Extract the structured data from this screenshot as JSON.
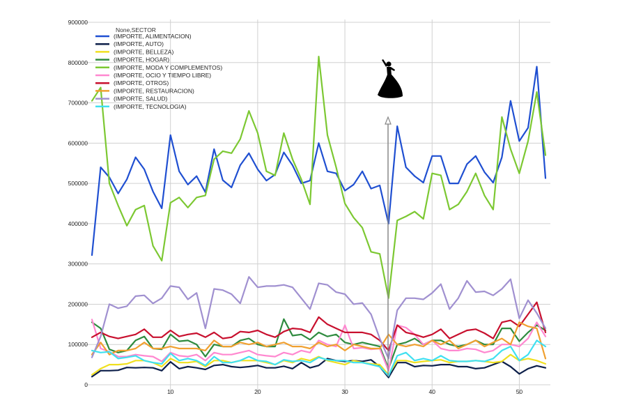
{
  "chart_data": {
    "type": "line",
    "x": [
      1,
      2,
      3,
      4,
      5,
      6,
      7,
      8,
      9,
      10,
      11,
      12,
      13,
      14,
      15,
      16,
      17,
      18,
      19,
      20,
      21,
      22,
      23,
      24,
      25,
      26,
      27,
      28,
      29,
      30,
      31,
      32,
      33,
      34,
      35,
      36,
      37,
      38,
      39,
      40,
      41,
      42,
      43,
      44,
      45,
      46,
      47,
      48,
      49,
      50,
      51,
      52,
      53
    ],
    "xticks": [
      10,
      20,
      30,
      40,
      50
    ],
    "xlim": [
      1,
      53
    ],
    "ylim": [
      0,
      900000
    ],
    "yticks": [
      0,
      100000,
      200000,
      300000,
      400000,
      500000,
      600000,
      700000,
      800000,
      900000
    ],
    "ytick_labels": [
      "0",
      "100000",
      "200000",
      "300000",
      "400000",
      "500000",
      "600000",
      "700000",
      "800000",
      "900000"
    ],
    "grid": true,
    "legend_title": "None,SECTOR",
    "legend_position": "top-left",
    "annotation": "dancer-icon with arrow at x=35",
    "series": [
      {
        "name": "(IMPORTE, ALIMENTACION)",
        "color": "#1f4fd1",
        "values": [
          322000,
          540000,
          515000,
          475000,
          510000,
          565000,
          535000,
          480000,
          438000,
          620000,
          530000,
          497000,
          518000,
          478000,
          585000,
          508000,
          490000,
          545000,
          575000,
          535000,
          507000,
          522000,
          577000,
          545000,
          500000,
          507000,
          600000,
          530000,
          525000,
          482000,
          497000,
          530000,
          487000,
          495000,
          400000,
          642000,
          540000,
          518000,
          502000,
          568000,
          568000,
          500000,
          500000,
          548000,
          568000,
          528000,
          502000,
          565000,
          705000,
          605000,
          638000,
          790000,
          513000
        ]
      },
      {
        "name": "(IMPORTE, AUTO)",
        "color": "#0d1f4a",
        "values": [
          20000,
          35000,
          35000,
          36000,
          43000,
          42000,
          43000,
          42000,
          35000,
          57000,
          40000,
          45000,
          42000,
          38000,
          48000,
          50000,
          45000,
          43000,
          45000,
          48000,
          42000,
          42000,
          46000,
          40000,
          55000,
          42000,
          48000,
          65000,
          60000,
          58000,
          60000,
          58000,
          62000,
          45000,
          18000,
          55000,
          55000,
          45000,
          48000,
          47000,
          50000,
          50000,
          45000,
          45000,
          40000,
          42000,
          50000,
          58000,
          45000,
          27000,
          40000,
          47000,
          42000
        ]
      },
      {
        "name": "(IMPORTE, BELLEZA)",
        "color": "#f0e020",
        "values": [
          25000,
          40000,
          50000,
          50000,
          52000,
          60000,
          60000,
          55000,
          45000,
          65000,
          55000,
          55000,
          58000,
          45000,
          60000,
          60000,
          55000,
          60000,
          60000,
          60000,
          55000,
          50000,
          60000,
          55000,
          65000,
          60000,
          70000,
          60000,
          55000,
          50000,
          60000,
          55000,
          52000,
          50000,
          25000,
          60000,
          60000,
          55000,
          58000,
          60000,
          62000,
          55000,
          58000,
          58000,
          60000,
          58000,
          55000,
          58000,
          75000,
          60000,
          65000,
          60000,
          52000
        ]
      },
      {
        "name": "(IMPORTE, HOGAR)",
        "color": "#2e8b3e",
        "values": [
          155000,
          140000,
          88000,
          80000,
          85000,
          110000,
          120000,
          90000,
          88000,
          125000,
          108000,
          110000,
          100000,
          70000,
          100000,
          95000,
          95000,
          110000,
          115000,
          100000,
          95000,
          95000,
          163000,
          122000,
          125000,
          112000,
          130000,
          120000,
          125000,
          105000,
          100000,
          105000,
          100000,
          95000,
          40000,
          100000,
          105000,
          115000,
          100000,
          110000,
          110000,
          100000,
          95000,
          100000,
          110000,
          100000,
          100000,
          140000,
          140000,
          108000,
          130000,
          148000,
          135000
        ]
      },
      {
        "name": "(IMPORTE, MODA Y COMPLEMENTOS)",
        "color": "#7cc832",
        "values": [
          705000,
          738000,
          500000,
          445000,
          395000,
          435000,
          445000,
          345000,
          308000,
          452000,
          465000,
          440000,
          465000,
          470000,
          560000,
          580000,
          575000,
          610000,
          680000,
          625000,
          530000,
          520000,
          625000,
          560000,
          510000,
          448000,
          815000,
          620000,
          540000,
          450000,
          415000,
          390000,
          330000,
          325000,
          215000,
          408000,
          418000,
          430000,
          412000,
          525000,
          520000,
          435000,
          448000,
          480000,
          525000,
          470000,
          435000,
          665000,
          585000,
          525000,
          605000,
          727000,
          570000
        ]
      },
      {
        "name": "(IMPORTE, OCIO Y TIEMPO LIBRE)",
        "color": "#ff88d0",
        "values": [
          162000,
          90000,
          82000,
          70000,
          70000,
          75000,
          72000,
          70000,
          58000,
          80000,
          72000,
          70000,
          75000,
          60000,
          80000,
          75000,
          75000,
          80000,
          85000,
          75000,
          72000,
          70000,
          80000,
          75000,
          85000,
          80000,
          110000,
          100000,
          95000,
          148000,
          90000,
          92000,
          88000,
          90000,
          35000,
          148000,
          142000,
          125000,
          100000,
          110000,
          90000,
          85000,
          85000,
          90000,
          88000,
          80000,
          85000,
          100000,
          100000,
          95000,
          115000,
          155000,
          120000
        ]
      },
      {
        "name": "(IMPORTE, OTROS)",
        "color": "#c8102e",
        "values": [
          118000,
          130000,
          120000,
          115000,
          120000,
          125000,
          138000,
          118000,
          118000,
          135000,
          120000,
          125000,
          128000,
          118000,
          130000,
          115000,
          118000,
          132000,
          130000,
          135000,
          125000,
          118000,
          132000,
          140000,
          138000,
          130000,
          168000,
          150000,
          140000,
          130000,
          130000,
          130000,
          125000,
          110000,
          85000,
          148000,
          130000,
          125000,
          118000,
          125000,
          138000,
          115000,
          125000,
          135000,
          138000,
          128000,
          115000,
          155000,
          160000,
          145000,
          175000,
          205000,
          130000
        ]
      },
      {
        "name": "(IMPORTE, RESTAURACION)",
        "color": "#f0a030",
        "values": [
          75000,
          105000,
          75000,
          85000,
          85000,
          90000,
          105000,
          90000,
          90000,
          95000,
          90000,
          90000,
          90000,
          85000,
          110000,
          95000,
          95000,
          105000,
          100000,
          105000,
          95000,
          100000,
          105000,
          95000,
          95000,
          90000,
          105000,
          95000,
          100000,
          85000,
          100000,
          95000,
          90000,
          90000,
          125000,
          100000,
          95000,
          100000,
          95000,
          110000,
          100000,
          110000,
          90000,
          100000,
          110000,
          95000,
          105000,
          115000,
          100000,
          155000,
          145000,
          140000,
          65000
        ]
      },
      {
        "name": "(IMPORTE, SALUD)",
        "color": "#a090d0",
        "values": [
          68000,
          120000,
          200000,
          190000,
          195000,
          220000,
          222000,
          202000,
          215000,
          245000,
          242000,
          212000,
          228000,
          140000,
          238000,
          235000,
          225000,
          202000,
          268000,
          242000,
          245000,
          245000,
          248000,
          242000,
          215000,
          188000,
          252000,
          248000,
          230000,
          225000,
          200000,
          203000,
          175000,
          115000,
          65000,
          185000,
          215000,
          215000,
          212000,
          228000,
          250000,
          188000,
          215000,
          258000,
          230000,
          232000,
          222000,
          238000,
          262000,
          165000,
          210000,
          178000,
          140000
        ]
      },
      {
        "name": "(IMPORTE, TECNOLOGIA)",
        "color": "#40e0f0",
        "values": [
          85000,
          80000,
          82000,
          65000,
          68000,
          72000,
          60000,
          55000,
          52000,
          78000,
          60000,
          65000,
          60000,
          48000,
          70000,
          55000,
          55000,
          60000,
          70000,
          60000,
          58000,
          50000,
          62000,
          58000,
          60000,
          55000,
          68000,
          62000,
          60000,
          60000,
          55000,
          55000,
          50000,
          45000,
          22000,
          72000,
          80000,
          60000,
          65000,
          60000,
          72000,
          60000,
          58000,
          58000,
          60000,
          58000,
          65000,
          85000,
          95000,
          60000,
          75000,
          110000,
          95000
        ]
      }
    ]
  }
}
